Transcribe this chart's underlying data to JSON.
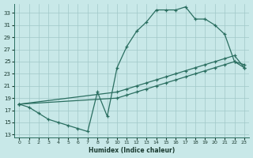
{
  "bg_color": "#c8e8e8",
  "grid_color": "#a0c8c8",
  "line_color": "#2a6e60",
  "xlabel": "Humidex (Indice chaleur)",
  "xlim": [
    -0.5,
    23.5
  ],
  "ylim": [
    12.5,
    34.5
  ],
  "yticks": [
    13,
    15,
    17,
    19,
    21,
    23,
    25,
    27,
    29,
    31,
    33
  ],
  "xticks": [
    0,
    1,
    2,
    3,
    4,
    5,
    6,
    7,
    8,
    9,
    10,
    11,
    12,
    13,
    14,
    15,
    16,
    17,
    18,
    19,
    20,
    21,
    22,
    23
  ],
  "curve1_x": [
    0,
    1,
    2,
    3,
    4,
    5,
    6,
    7,
    8,
    9,
    10,
    11,
    12,
    13,
    14,
    15,
    16,
    17,
    18,
    19,
    20,
    21,
    22,
    23
  ],
  "curve1_y": [
    18,
    17.5,
    16.5,
    15.5,
    15,
    14.5,
    14,
    13.5,
    20,
    16,
    24,
    27.5,
    30,
    31.5,
    33.5,
    33.5,
    33.5,
    34,
    32,
    32,
    31,
    29.5,
    25,
    24.5
  ],
  "curve2_x": [
    0,
    10,
    11,
    12,
    13,
    14,
    15,
    16,
    17,
    18,
    19,
    20,
    21,
    22,
    23
  ],
  "curve2_y": [
    18,
    19,
    19.5,
    20,
    20.5,
    21,
    21.5,
    22,
    22.5,
    23,
    23.5,
    24,
    24.5,
    25,
    24
  ],
  "curve3_x": [
    0,
    10,
    11,
    12,
    13,
    14,
    15,
    16,
    17,
    18,
    19,
    20,
    21,
    22,
    23
  ],
  "curve3_y": [
    18,
    20,
    20.5,
    21,
    21.5,
    22,
    22.5,
    23,
    23.5,
    24,
    24.5,
    25,
    25.5,
    26,
    24
  ]
}
